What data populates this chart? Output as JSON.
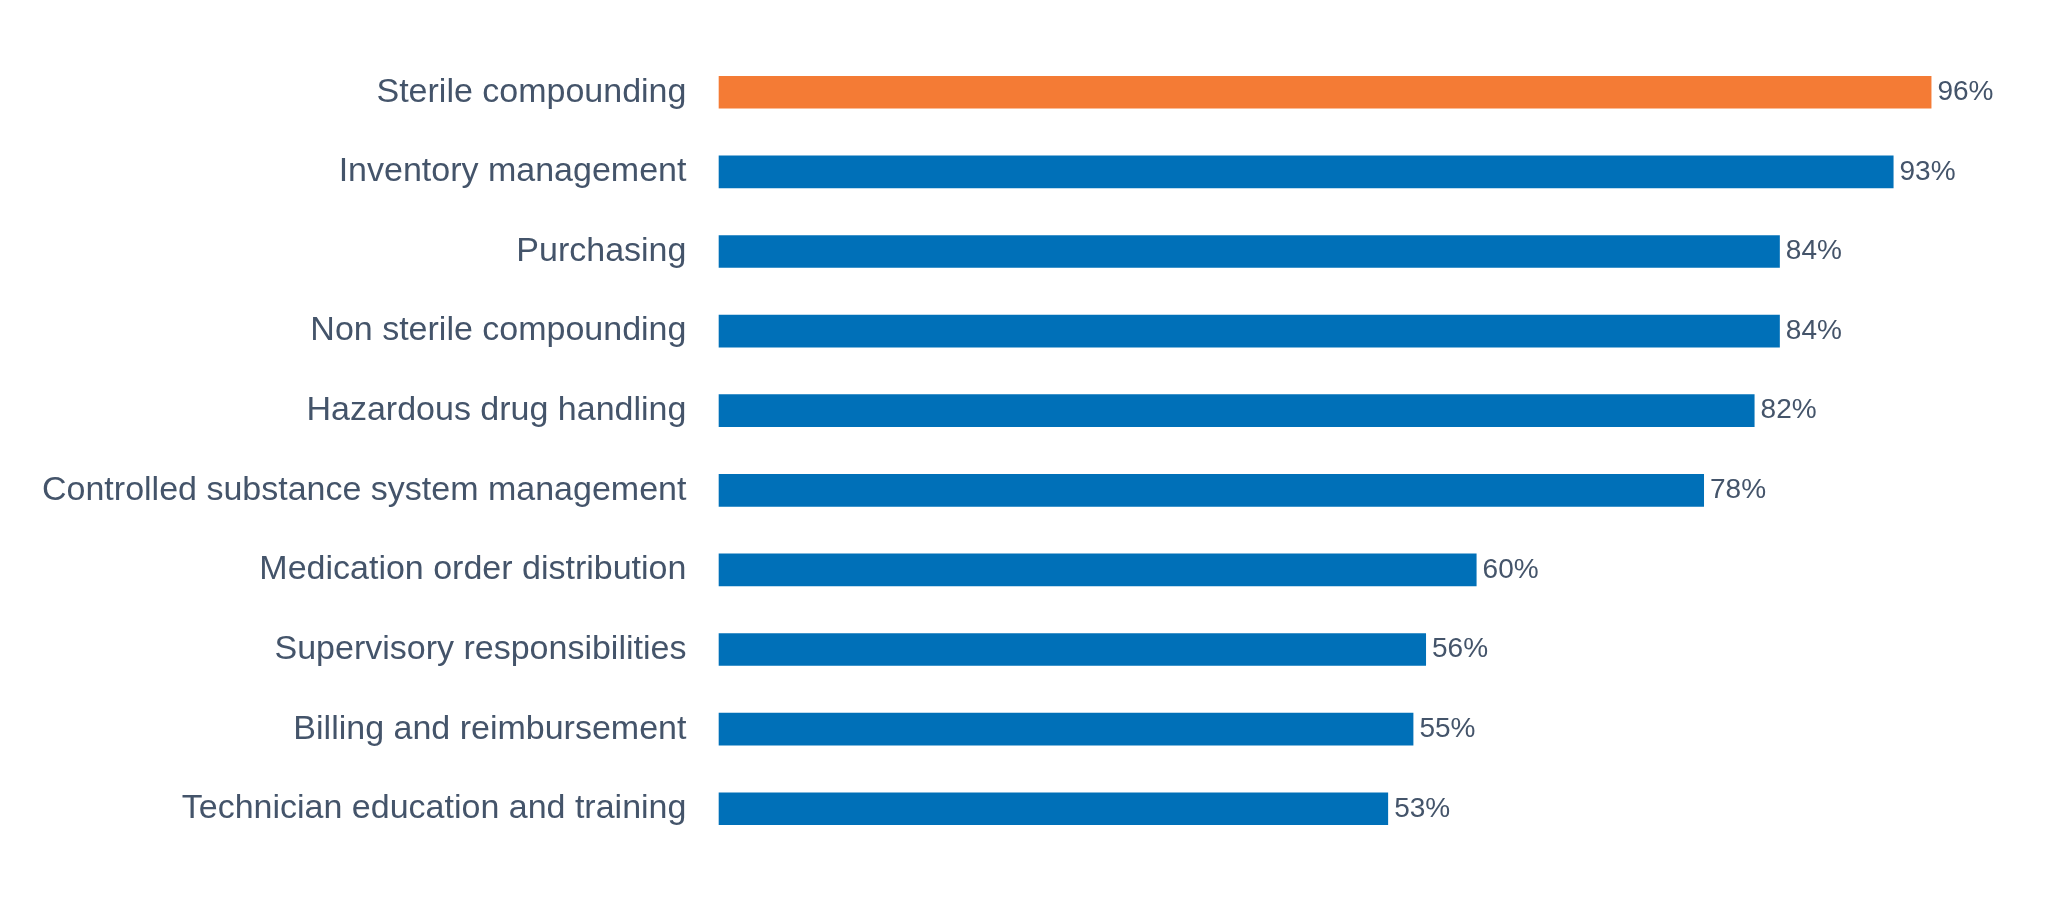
{
  "chart_data": {
    "type": "bar",
    "orientation": "horizontal",
    "categories": [
      "Sterile compounding",
      "Inventory management",
      "Purchasing",
      "Non sterile compounding",
      "Hazardous drug handling",
      "Controlled substance system management",
      "Medication order distribution",
      "Supervisory responsibilities",
      "Billing and reimbursement",
      "Technician education and training"
    ],
    "values": [
      96,
      93,
      84,
      84,
      82,
      78,
      60,
      56,
      55,
      53
    ],
    "colors": [
      "#f47b35",
      "#0070b8",
      "#0070b8",
      "#0070b8",
      "#0070b8",
      "#0070b8",
      "#0070b8",
      "#0070b8",
      "#0070b8",
      "#0070b8"
    ],
    "value_labels": [
      "96%",
      "93%",
      "84%",
      "84%",
      "82%",
      "78%",
      "60%",
      "56%",
      "55%",
      "53%"
    ],
    "tick_labels": "y",
    "legend": false
  }
}
